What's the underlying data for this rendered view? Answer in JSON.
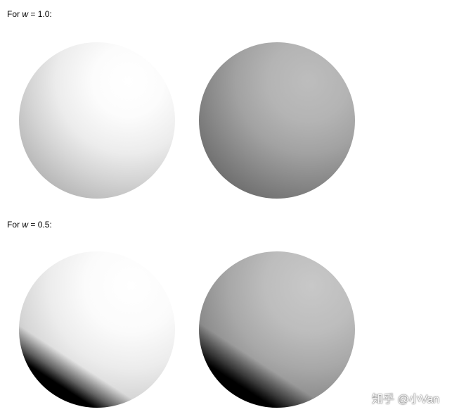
{
  "captions": [
    {
      "prefix": "For ",
      "variable": "w",
      "suffix": " = 1.0:"
    },
    {
      "prefix": "For ",
      "variable": "w",
      "suffix": " = 0.5:"
    }
  ],
  "watermark": "知乎 @小Van"
}
